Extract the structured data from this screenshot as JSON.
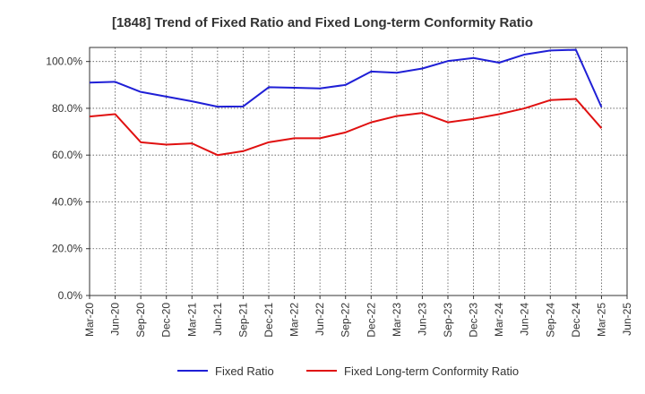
{
  "chart_data": {
    "type": "line",
    "title": "[1848]  Trend of Fixed Ratio and Fixed Long-term Conformity Ratio",
    "xlabel": "",
    "ylabel": "",
    "ylim": [
      0,
      100
    ],
    "y_ticks": [
      "0.0%",
      "20.0%",
      "40.0%",
      "60.0%",
      "80.0%",
      "100.0%"
    ],
    "y_tick_values": [
      0,
      20,
      40,
      60,
      80,
      100
    ],
    "x_tick_labels": [
      "Mar-20",
      "Jun-20",
      "Sep-20",
      "Dec-20",
      "Mar-21",
      "Jun-21",
      "Sep-21",
      "Dec-21",
      "Mar-22",
      "Jun-22",
      "Sep-22",
      "Dec-22",
      "Mar-23",
      "Jun-23",
      "Sep-23",
      "Dec-23",
      "Mar-24",
      "Jun-24",
      "Sep-24",
      "Dec-24",
      "Mar-25",
      "Jun-25"
    ],
    "categories": [
      "Mar-20",
      "Jun-20",
      "Sep-20",
      "Dec-20",
      "Mar-21",
      "Jun-21",
      "Sep-21",
      "Dec-21",
      "Mar-22",
      "Jun-22",
      "Sep-22",
      "Dec-22",
      "Mar-23",
      "Jun-23",
      "Sep-23",
      "Dec-23",
      "Mar-24",
      "Jun-24",
      "Sep-24",
      "Dec-24",
      "Mar-25"
    ],
    "grid": true,
    "legend_position": "bottom",
    "series": [
      {
        "name": "Fixed Ratio",
        "color": "#1f1fd6",
        "values": [
          91,
          91.3,
          87,
          85,
          83,
          80.7,
          80.8,
          89,
          88.8,
          88.5,
          90,
          95.7,
          95.2,
          97,
          100.2,
          101.5,
          99.5,
          103,
          104.7,
          105,
          80.5
        ]
      },
      {
        "name": "Fixed Long-term Conformity Ratio",
        "color": "#e01010",
        "values": [
          76.5,
          77.5,
          65.5,
          64.5,
          65,
          60,
          61.7,
          65.5,
          67.2,
          67.2,
          69.7,
          74,
          76.7,
          78,
          74,
          75.5,
          77.5,
          80,
          83.5,
          84,
          71.5
        ]
      }
    ]
  }
}
